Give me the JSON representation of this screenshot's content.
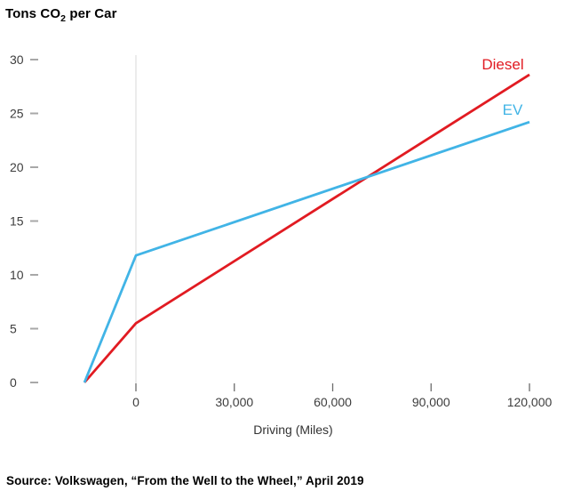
{
  "title": {
    "prefix": "Tons CO",
    "sub": "2",
    "suffix": " per Car"
  },
  "source": "Source: Volkswagen, “From the Well to the Wheel,” April 2019",
  "colors": {
    "diesel": "#e11b22",
    "ev": "#41b4e6",
    "gridline": "#d8d8d8",
    "y_tick": "#a8a8a8",
    "x_tick": "#6b6b6b",
    "tick_label": "#3d3d3d",
    "axis_title": "#333333"
  },
  "chart_data": {
    "type": "line",
    "title": "Tons CO2 per Car",
    "xlabel": "Driving (Miles)",
    "ylabel": "Tons CO2 per Car",
    "x_ticks": [
      0,
      30000,
      60000,
      90000,
      120000
    ],
    "x_tick_labels": [
      "0",
      "30,000",
      "60,000",
      "90,000",
      "120,000"
    ],
    "y_ticks": [
      0,
      5,
      10,
      15,
      20,
      25,
      30
    ],
    "xlim": [
      -15700,
      120000
    ],
    "ylim": [
      0,
      30
    ],
    "grid": {
      "vertical_gridline_at_x": 0,
      "horizontal_gridlines": false
    },
    "legend_position": "inline labels at upper-right line ends",
    "series": [
      {
        "name": "Diesel",
        "color": "#e11b22",
        "points": [
          [
            -15700,
            0
          ],
          [
            0,
            5.5
          ],
          [
            120000,
            28.6
          ]
        ]
      },
      {
        "name": "EV",
        "color": "#41b4e6",
        "points": [
          [
            -15700,
            0
          ],
          [
            0,
            11.8
          ],
          [
            120000,
            24.2
          ]
        ]
      }
    ],
    "note": "Both lines start at 0 tons to the left of the 0-mile gridline (vehicle production emissions), then rise with driving distance; they cross near 71,000 miles at about 19 tons."
  }
}
